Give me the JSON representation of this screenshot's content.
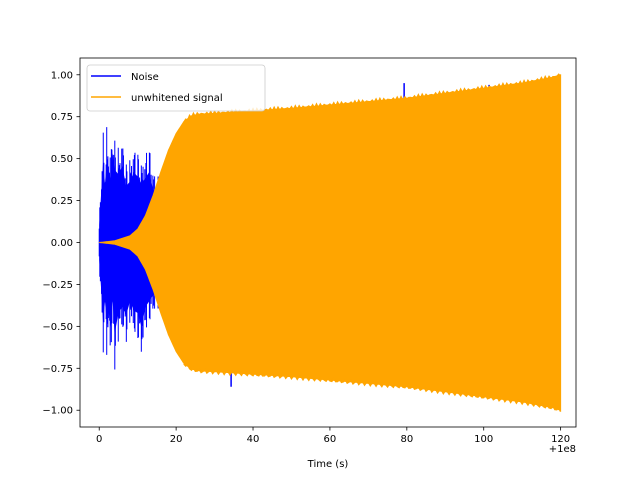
{
  "chart_data": {
    "type": "line",
    "title": "",
    "xlabel": "Time (s)",
    "ylabel": "",
    "x_offset_label": "+1e8",
    "xlim": [
      -5,
      124
    ],
    "ylim": [
      -1.1,
      1.1
    ],
    "x_ticks": [
      0,
      20,
      40,
      60,
      80,
      100,
      120
    ],
    "x_tick_labels": [
      "0",
      "20",
      "40",
      "60",
      "80",
      "100",
      "120"
    ],
    "y_ticks": [
      1.0,
      0.75,
      0.5,
      0.25,
      0.0,
      -0.25,
      -0.5,
      -0.75,
      -1.0
    ],
    "y_tick_labels": [
      "1.00",
      "0.75",
      "0.50",
      "0.25",
      "0.00",
      "−0.25",
      "−0.50",
      "−0.75",
      "−1.00"
    ],
    "grid": false,
    "legend_position": "top-left",
    "series": [
      {
        "name": "Noise",
        "color": "#0000ff",
        "style": "dense oscillation, envelope values",
        "x": [
          0,
          0.5,
          1,
          1.5,
          2,
          2.5,
          3,
          3.5,
          4,
          5,
          6,
          7,
          8,
          9,
          10,
          11,
          12,
          13,
          14,
          16,
          18,
          20,
          25,
          30,
          34.3,
          35,
          40,
          48,
          56,
          65,
          79.3,
          80,
          90,
          101.4,
          102,
          110,
          120
        ],
        "upper": [
          0.15,
          0.42,
          0.68,
          0.5,
          0.72,
          0.6,
          0.55,
          0.76,
          0.62,
          0.58,
          0.65,
          0.48,
          0.52,
          0.6,
          0.56,
          0.5,
          0.55,
          0.6,
          0.45,
          0.38,
          0.25,
          0.1,
          0.0,
          0.0,
          0.0,
          0.0,
          0.0,
          0.0,
          0.0,
          0.0,
          0.95,
          0.0,
          0.0,
          0.94,
          0.0,
          0.0,
          0.0
        ],
        "lower": [
          -0.15,
          -0.4,
          -0.68,
          -0.5,
          -0.7,
          -0.6,
          -0.72,
          -0.5,
          -0.78,
          -0.6,
          -0.55,
          -0.62,
          -0.5,
          -0.58,
          -0.6,
          -0.72,
          -0.55,
          -0.5,
          -0.45,
          -0.38,
          -0.25,
          -0.1,
          0.0,
          0.0,
          -0.86,
          0.0,
          0.0,
          0.0,
          -0.82,
          0.0,
          0.0,
          0.0,
          0.0,
          0.0,
          0.0,
          0.0,
          0.0
        ]
      },
      {
        "name": "unwhitened signal",
        "color": "#ffa500",
        "style": "dense oscillation, symmetric envelope",
        "x": [
          0,
          4,
          8,
          10,
          12,
          14,
          16,
          18,
          20,
          22,
          24,
          26,
          30,
          40,
          50,
          60,
          70,
          80,
          90,
          100,
          110,
          118,
          120
        ],
        "envelope": [
          0.0,
          0.01,
          0.04,
          0.08,
          0.16,
          0.28,
          0.42,
          0.55,
          0.65,
          0.72,
          0.755,
          0.765,
          0.77,
          0.785,
          0.8,
          0.82,
          0.84,
          0.86,
          0.89,
          0.92,
          0.95,
          0.985,
          1.0
        ]
      }
    ]
  }
}
